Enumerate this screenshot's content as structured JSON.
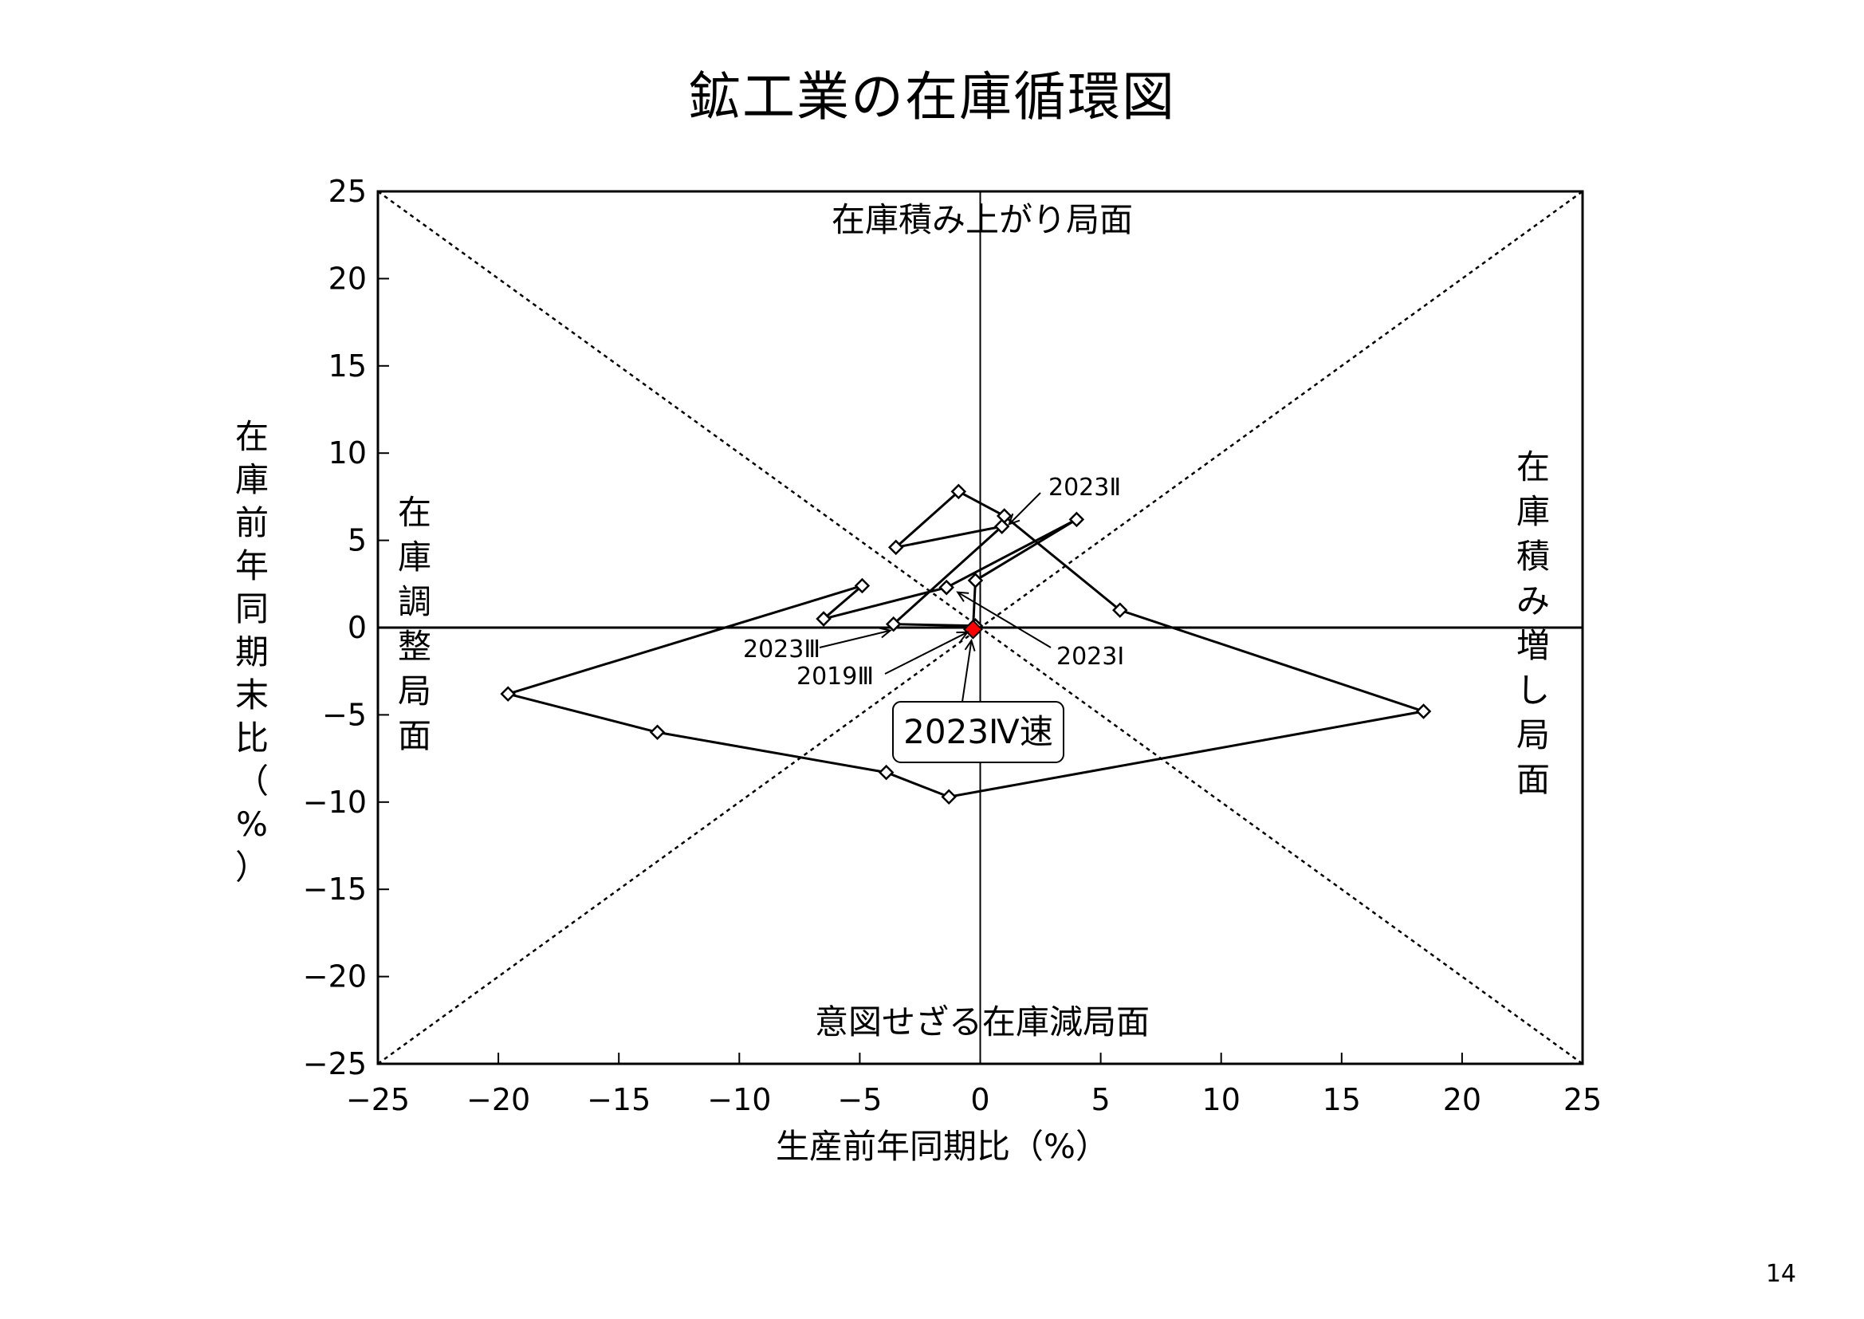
{
  "title": "鉱工業の在庫循環図",
  "page_number": "14",
  "chart_data": {
    "type": "scatter",
    "connected": true,
    "xlabel": "生産前年同期比（%）",
    "ylabel": "在庫前年同期末比（%）",
    "xlim": [
      -25,
      25
    ],
    "ylim": [
      -25,
      25
    ],
    "xticks": [
      -25,
      -20,
      -15,
      -10,
      -5,
      0,
      5,
      10,
      15,
      20,
      25
    ],
    "yticks": [
      -25,
      -20,
      -15,
      -10,
      -5,
      0,
      5,
      10,
      15,
      20,
      25
    ],
    "grid": false,
    "points": [
      {
        "x": -0.2,
        "y": 0.1
      },
      {
        "x": -3.6,
        "y": 0.2
      },
      {
        "x": 0.9,
        "y": 5.8
      },
      {
        "x": -3.5,
        "y": 4.6
      },
      {
        "x": -0.9,
        "y": 7.8
      },
      {
        "x": 1.0,
        "y": 6.4
      },
      {
        "x": 5.8,
        "y": 1.0
      },
      {
        "x": 18.4,
        "y": -4.8
      },
      {
        "x": -1.3,
        "y": -9.7
      },
      {
        "x": -3.9,
        "y": -8.3
      },
      {
        "x": -13.4,
        "y": -6.0
      },
      {
        "x": -19.6,
        "y": -3.8
      },
      {
        "x": -4.9,
        "y": 2.4
      },
      {
        "x": -6.5,
        "y": 0.5
      },
      {
        "x": -1.4,
        "y": 2.3
      },
      {
        "x": 4.0,
        "y": 6.2
      },
      {
        "x": -0.2,
        "y": 2.7
      },
      {
        "x": -0.3,
        "y": -0.1
      }
    ],
    "latest_point": {
      "x": -0.3,
      "y": -0.1,
      "color": "#ff0000"
    },
    "quadrant_labels": {
      "top": "在庫積み上がり局面",
      "right": "在庫積み増し局面",
      "bottom": "意図せざる在庫減局面",
      "left": "在庫調整局面"
    },
    "annotations": [
      {
        "text": "2023Ⅱ",
        "x": 1.0,
        "y": 6.2
      },
      {
        "text": "2023Ⅰ",
        "x": -1.2,
        "y": 2.3
      },
      {
        "text": "2023Ⅲ",
        "x": -3.6,
        "y": 0.2
      },
      {
        "text": "2019Ⅲ",
        "x": -0.2,
        "y": 0.1
      },
      {
        "text": "2023Ⅳ速",
        "x": -0.3,
        "y": -0.1
      }
    ],
    "colors": {
      "line": "#000000",
      "marker_fill": "#ffffff",
      "latest": "#ff0000"
    }
  }
}
